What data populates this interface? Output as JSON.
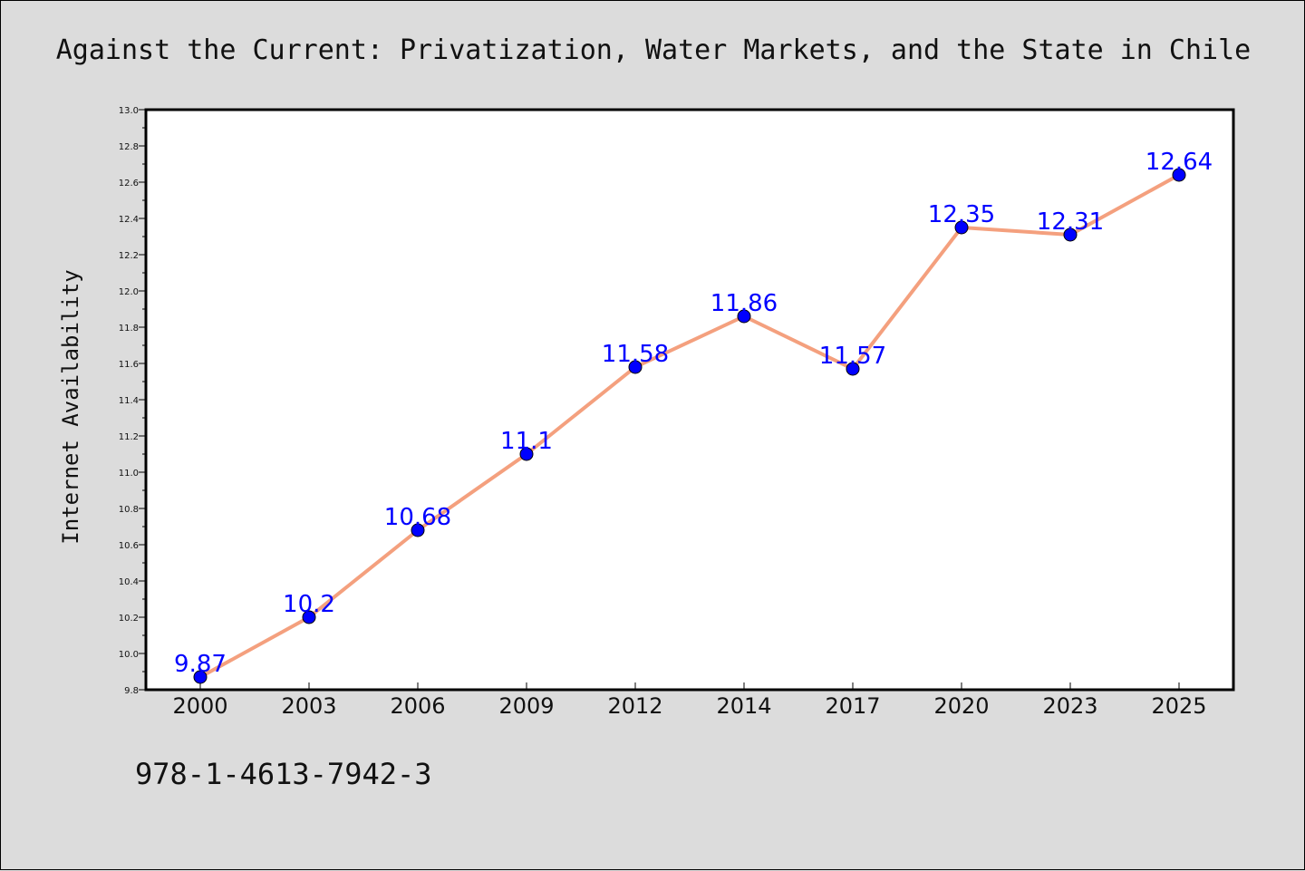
{
  "chart_data": {
    "type": "line",
    "title": "Against the Current: Privatization, Water Markets, and the State in Chile",
    "xlabel": "",
    "ylabel": "Internet Availability",
    "categories": [
      "2000",
      "2003",
      "2006",
      "2009",
      "2012",
      "2014",
      "2017",
      "2020",
      "2023",
      "2025"
    ],
    "values": [
      9.87,
      10.2,
      10.68,
      11.1,
      11.58,
      11.86,
      11.57,
      12.35,
      12.31,
      12.64
    ],
    "data_labels": [
      "9.87",
      "10.2",
      "10.68",
      "11.1",
      "11.58",
      "11.86",
      "11.57",
      "12.35",
      "12.31",
      "12.64"
    ],
    "ylim": [
      9.8,
      13.0
    ],
    "yticks": [
      "9.8",
      "10.0",
      "10.2",
      "10.4",
      "10.6",
      "10.8",
      "11.0",
      "11.2",
      "11.4",
      "11.6",
      "11.8",
      "12.0",
      "12.2",
      "12.4",
      "12.6",
      "12.8",
      "13.0"
    ],
    "grid": false,
    "line_color": "#f4a07e",
    "marker_color": "#0000ff"
  },
  "footer": {
    "isbn": "978-1-4613-7942-3"
  }
}
